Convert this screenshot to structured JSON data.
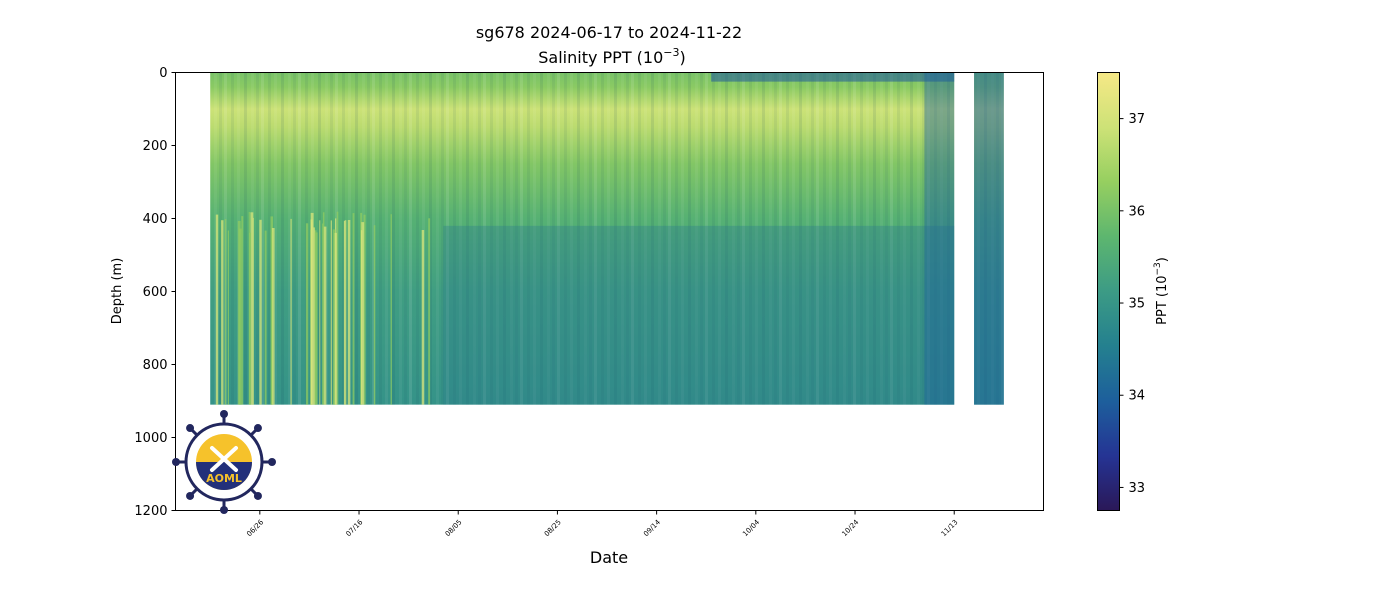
{
  "chart_data": {
    "type": "heatmap",
    "title": "sg678 2024-06-17 to 2024-11-22",
    "subtitle": "Salinity PPT (10",
    "subtitle_sup": "−3",
    "subtitle_end": ")",
    "xlabel": "Date",
    "ylabel": "Depth (m)",
    "x_range": [
      "2024-06-09",
      "2024-12-01"
    ],
    "x_ticks": [
      {
        "date": "2024-06-26",
        "label": "06/26"
      },
      {
        "date": "2024-07-16",
        "label": "07/16"
      },
      {
        "date": "2024-08-05",
        "label": "08/05"
      },
      {
        "date": "2024-08-25",
        "label": "08/25"
      },
      {
        "date": "2024-09-14",
        "label": "09/14"
      },
      {
        "date": "2024-10-04",
        "label": "10/04"
      },
      {
        "date": "2024-10-24",
        "label": "10/24"
      },
      {
        "date": "2024-11-13",
        "label": "11/13"
      }
    ],
    "ylim": [
      1200,
      0
    ],
    "y_ticks": [
      0,
      200,
      400,
      600,
      800,
      1000,
      1200
    ],
    "colorbar": {
      "label": "PPT (10",
      "label_sup": "−3",
      "label_end": ")",
      "range": [
        32.75,
        37.5
      ],
      "ticks": [
        33,
        34,
        35,
        36,
        37
      ],
      "colors": [
        "#2a1858",
        "#253494",
        "#1d5f9c",
        "#24808f",
        "#3c9b85",
        "#5db66f",
        "#96cf60",
        "#cde277",
        "#f6e886"
      ]
    },
    "depth_profile": [
      {
        "depth": 0,
        "value": 36.0
      },
      {
        "depth": 40,
        "value": 36.2
      },
      {
        "depth": 100,
        "value": 36.9
      },
      {
        "depth": 150,
        "value": 36.7
      },
      {
        "depth": 250,
        "value": 36.1
      },
      {
        "depth": 400,
        "value": 35.6
      },
      {
        "depth": 600,
        "value": 35.2
      },
      {
        "depth": 900,
        "value": 34.95
      }
    ],
    "data_segments": [
      {
        "start": "2024-06-16",
        "end": "2024-11-13",
        "max_depth": 910
      },
      {
        "start": "2024-11-17",
        "end": "2024-11-23",
        "max_depth": 910
      }
    ],
    "logo_text": "AOML"
  }
}
